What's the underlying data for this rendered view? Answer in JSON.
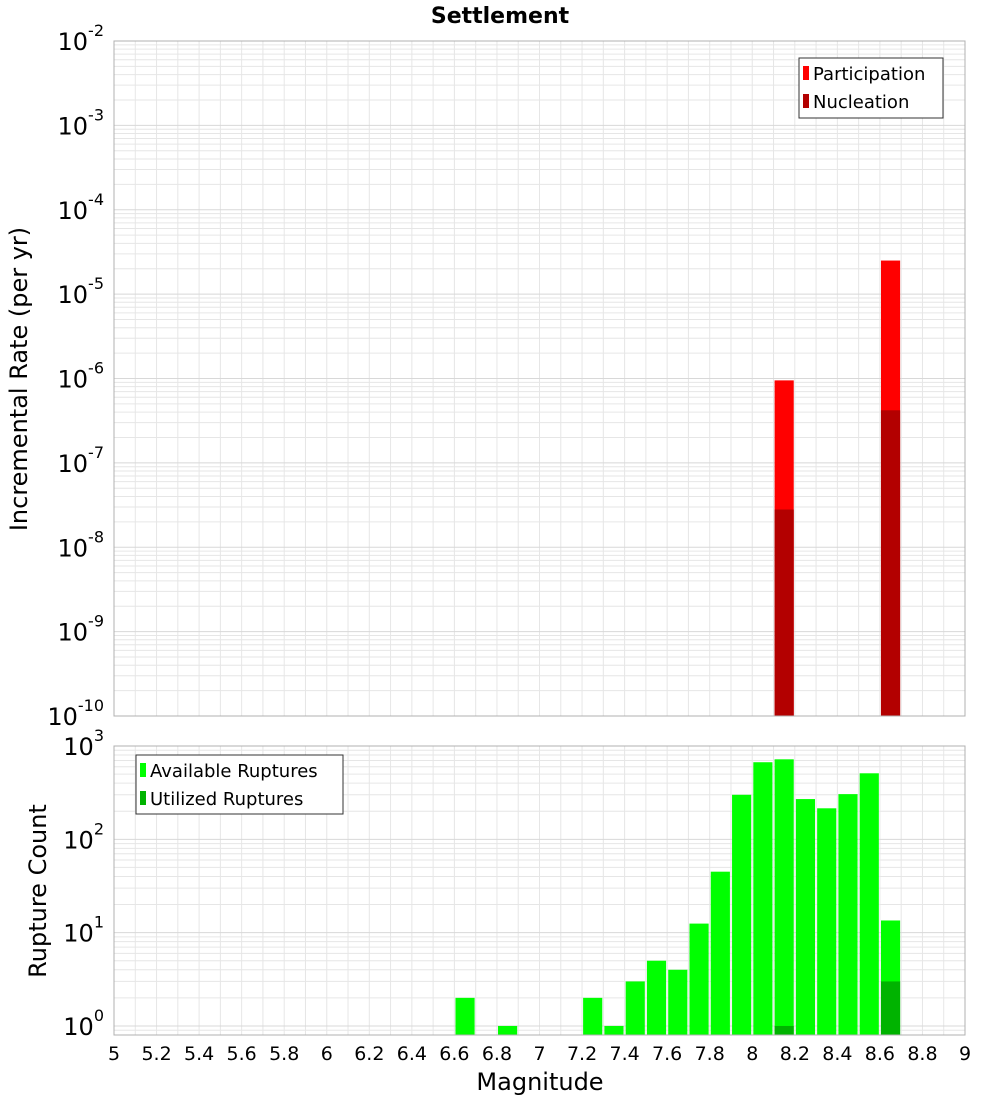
{
  "colors": {
    "participation": "#ff0000",
    "nucleation": "#b30000",
    "available": "#00ff00",
    "utilized": "#00b300",
    "grid": "#e6e6e6",
    "frame": "#b0b0b0"
  },
  "chart_data": [
    {
      "type": "bar",
      "title": "Settlement",
      "ylabel": "Incremental Rate (per yr)",
      "yscale": "log",
      "ylim": [
        1e-10,
        0.01
      ],
      "xlim": [
        5,
        9
      ],
      "bar_width": 0.09,
      "legend_placement": "top-right",
      "y_tick_labels": [
        {
          "v": 1e-10,
          "base": "10",
          "exp": "-10"
        },
        {
          "v": 1e-09,
          "base": "10",
          "exp": "-9"
        },
        {
          "v": 1e-08,
          "base": "10",
          "exp": "-8"
        },
        {
          "v": 1e-07,
          "base": "10",
          "exp": "-7"
        },
        {
          "v": 1e-06,
          "base": "10",
          "exp": "-6"
        },
        {
          "v": 1e-05,
          "base": "10",
          "exp": "-5"
        },
        {
          "v": 0.0001,
          "base": "10",
          "exp": "-4"
        },
        {
          "v": 0.001,
          "base": "10",
          "exp": "-3"
        },
        {
          "v": 0.01,
          "base": "10",
          "exp": "-2"
        }
      ],
      "series": [
        {
          "name": "Participation",
          "color_key": "participation",
          "points": [
            {
              "x": 8.15,
              "y": 9.5e-07
            },
            {
              "x": 8.65,
              "y": 2.5e-05
            }
          ]
        },
        {
          "name": "Nucleation",
          "color_key": "nucleation",
          "points": [
            {
              "x": 8.15,
              "y": 2.8e-08
            },
            {
              "x": 8.65,
              "y": 4.2e-07
            }
          ]
        }
      ]
    },
    {
      "type": "bar",
      "xlabel": "Magnitude",
      "ylabel": "Rupture Count",
      "yscale": "log",
      "ylim": [
        0.8,
        1000
      ],
      "xlim": [
        5,
        9
      ],
      "bar_width": 0.09,
      "legend_placement": "top-left",
      "x_tick_labels": [
        "5",
        "5.2",
        "5.4",
        "5.6",
        "5.8",
        "6",
        "6.2",
        "6.4",
        "6.6",
        "6.8",
        "7",
        "7.2",
        "7.4",
        "7.6",
        "7.8",
        "8",
        "8.2",
        "8.4",
        "8.6",
        "8.8",
        "9"
      ],
      "y_tick_labels": [
        {
          "v": 1,
          "base": "10",
          "exp": "0"
        },
        {
          "v": 10,
          "base": "10",
          "exp": "1"
        },
        {
          "v": 100,
          "base": "10",
          "exp": "2"
        },
        {
          "v": 1000,
          "base": "10",
          "exp": "3"
        }
      ],
      "series": [
        {
          "name": "Available Ruptures",
          "color_key": "available",
          "points": [
            {
              "x": 6.65,
              "y": 2
            },
            {
              "x": 6.85,
              "y": 1
            },
            {
              "x": 7.25,
              "y": 2
            },
            {
              "x": 7.35,
              "y": 1
            },
            {
              "x": 7.45,
              "y": 3
            },
            {
              "x": 7.55,
              "y": 5
            },
            {
              "x": 7.65,
              "y": 4
            },
            {
              "x": 7.75,
              "y": 12.5
            },
            {
              "x": 7.85,
              "y": 45
            },
            {
              "x": 7.95,
              "y": 300
            },
            {
              "x": 8.05,
              "y": 670
            },
            {
              "x": 8.15,
              "y": 720
            },
            {
              "x": 8.25,
              "y": 270
            },
            {
              "x": 8.35,
              "y": 215
            },
            {
              "x": 8.45,
              "y": 305
            },
            {
              "x": 8.55,
              "y": 510
            },
            {
              "x": 8.65,
              "y": 13.5
            }
          ]
        },
        {
          "name": "Utilized Ruptures",
          "color_key": "utilized",
          "points": [
            {
              "x": 8.15,
              "y": 1
            },
            {
              "x": 8.65,
              "y": 3
            }
          ]
        }
      ]
    }
  ]
}
